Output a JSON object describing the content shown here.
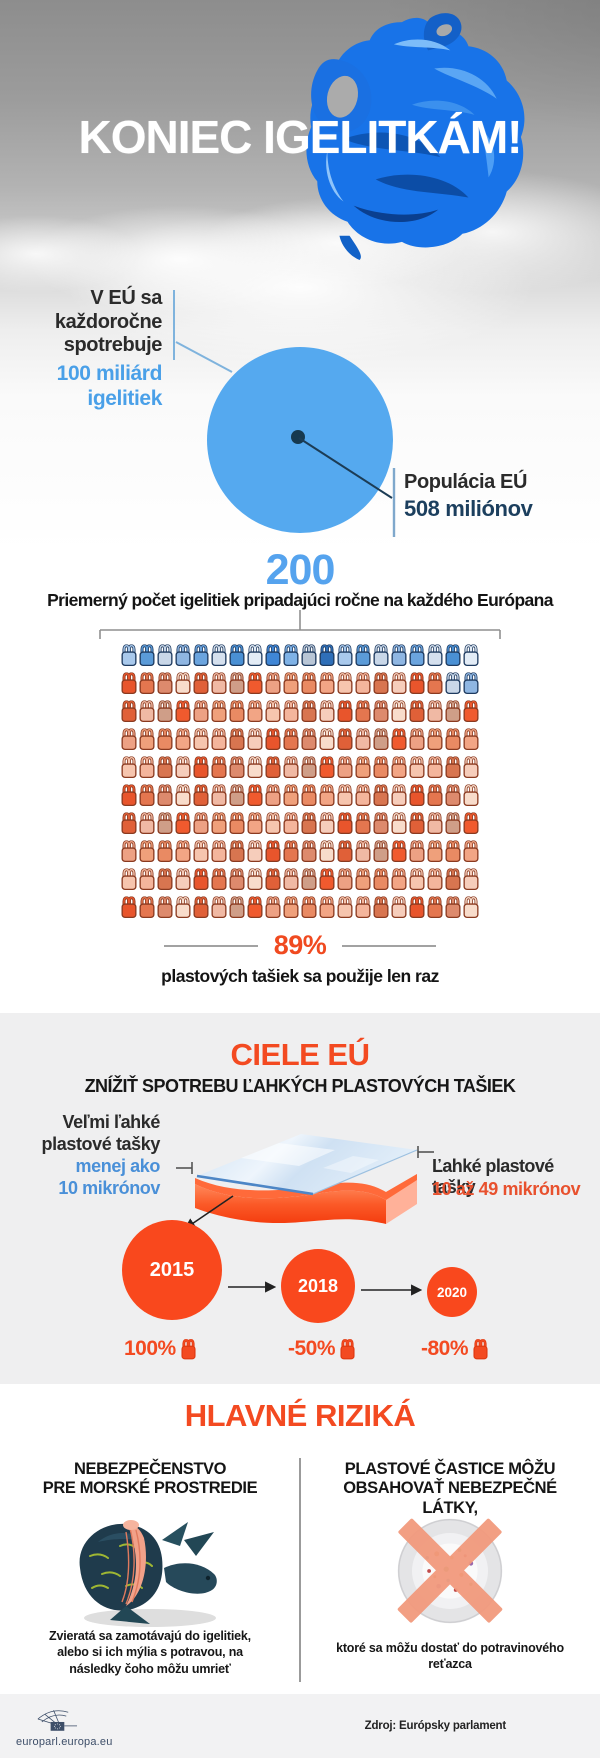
{
  "palette": {
    "accent_orange": "#f34a21",
    "accent_blue": "#55a3ee",
    "navy": "#1c3f5e",
    "blue_value_text": "#4a90d8",
    "orange_value_text": "#e8512e",
    "section_gray": "#efeff0",
    "footer_gray": "#f2f2f3",
    "circle_fill": "#55a9ef",
    "goal_circle_fill": "#f9481d"
  },
  "header": {
    "title": "KONIEC IGELITKÁM!"
  },
  "consumption": {
    "intro": "V EÚ sa\nkaždoročne\nspotrebuje",
    "amount": "100 miliárd\nigelitiek",
    "population_label": "Populácia EÚ",
    "population_value": "508 miliónov"
  },
  "per_capita": {
    "number": "200",
    "caption": "Priemerný počet igelitiek pripadajúci ročne na každého Európana"
  },
  "bag_grid": {
    "rows": 10,
    "cols": 20,
    "total": 200,
    "single_use_count": 178,
    "reused_count": 22,
    "blue_positions": [
      0,
      1,
      2,
      3,
      4,
      5,
      6,
      7,
      8,
      9,
      10,
      11,
      12,
      13,
      14,
      15,
      16,
      17,
      18,
      19,
      38,
      39
    ],
    "blue_shades": [
      "#e3ecf6",
      "#3f86d6",
      "#7fb2e6",
      "#b9c6d6",
      "#2f6fb8",
      "#a9c9ec",
      "#5b9bd8",
      "#c9d7e8",
      "#8fb6e2",
      "#6ba4de",
      "#d5e0ee",
      "#4a90d4"
    ],
    "orange_shades": [
      "#f8dccb",
      "#eda184",
      "#f4b59c",
      "#dd8a6d",
      "#f05a2e",
      "#f6c5ae",
      "#e4764f",
      "#cf9e88",
      "#f2a585",
      "#e8552c",
      "#f0b9a4",
      "#e98a63",
      "#f6cdbb",
      "#e06038",
      "#efa07b",
      "#d87550"
    ]
  },
  "single_use_stat": {
    "value": "89%",
    "caption": "plastových tašiek sa použije len raz"
  },
  "goals": {
    "title": "CIELE EÚ",
    "subtitle": "ZNÍŽIŤ SPOTREBU ĽAHKÝCH PLASTOVÝCH TAŠIEK",
    "very_light": {
      "label": "Veľmi ľahké\nplastové tašky",
      "value": "menej ako\n10 mikrónov"
    },
    "light": {
      "label": "Ľahké plastové  tašky",
      "value": "10 až 49 mikrónov"
    },
    "timeline": [
      {
        "year": "2015",
        "value": "100%"
      },
      {
        "year": "2018",
        "value": "-50%"
      },
      {
        "year": "2020",
        "value": "-80%"
      }
    ]
  },
  "risks": {
    "title": "HLAVNÉ RIZIKÁ",
    "left": {
      "heading": "NEBEZPEČENSTVO\nPRE MORSKÉ PROSTREDIE",
      "caption": "Zvieratá sa zamotávajú do igelitiek,\nalebo si ich mýlia s potravou, na\nnásledky čoho môžu umrieť"
    },
    "right": {
      "heading": "PLASTOVÉ ČASTICE MÔŽU\nOBSAHOVAŤ NEBEZPEČNÉ LÁTKY,",
      "caption": "ktoré sa môžu dostať do potravinového\nreťazca"
    }
  },
  "footer": {
    "site": "europarl.europa.eu",
    "source": "Zdroj: Európsky parlament"
  },
  "chart_data": [
    {
      "type": "pie",
      "title": "V EÚ sa každoročne spotrebuje 100 miliárd igelitiek",
      "labels": [
        "igelitky spotrebované ročne v EÚ"
      ],
      "values": [
        100000000000
      ],
      "annotations": [
        "Populácia EÚ: 508 miliónov",
        "200 igelitiek na každého Európana ročne"
      ],
      "legend_position": "none"
    },
    {
      "type": "pie",
      "title": "Podiel plastových tašiek použitých len raz",
      "labels": [
        "použité len raz",
        "použité opakovane"
      ],
      "values": [
        89,
        11
      ],
      "note": "pictogram 10 radov × 20 tašiek = 200; 178 oranžových (89 %), 22 modrých (11 %)"
    },
    {
      "type": "bar",
      "title": "CIELE EÚ – zníženie spotreby ľahkých plastových tašiek",
      "categories": [
        "2015",
        "2018",
        "2020"
      ],
      "values": [
        100,
        50,
        20
      ],
      "value_labels": [
        "100%",
        "-50%",
        "-80%"
      ],
      "note": "znázornené proporčnými kruhmi; -50 % do 2018 a -80 % do 2020 oproti roku 2015",
      "thickness_classes": [
        "Veľmi ľahké plastové tašky: menej ako 10 mikrónov",
        "Ľahké plastové tašky: 10 až 49 mikrónov"
      ]
    }
  ]
}
